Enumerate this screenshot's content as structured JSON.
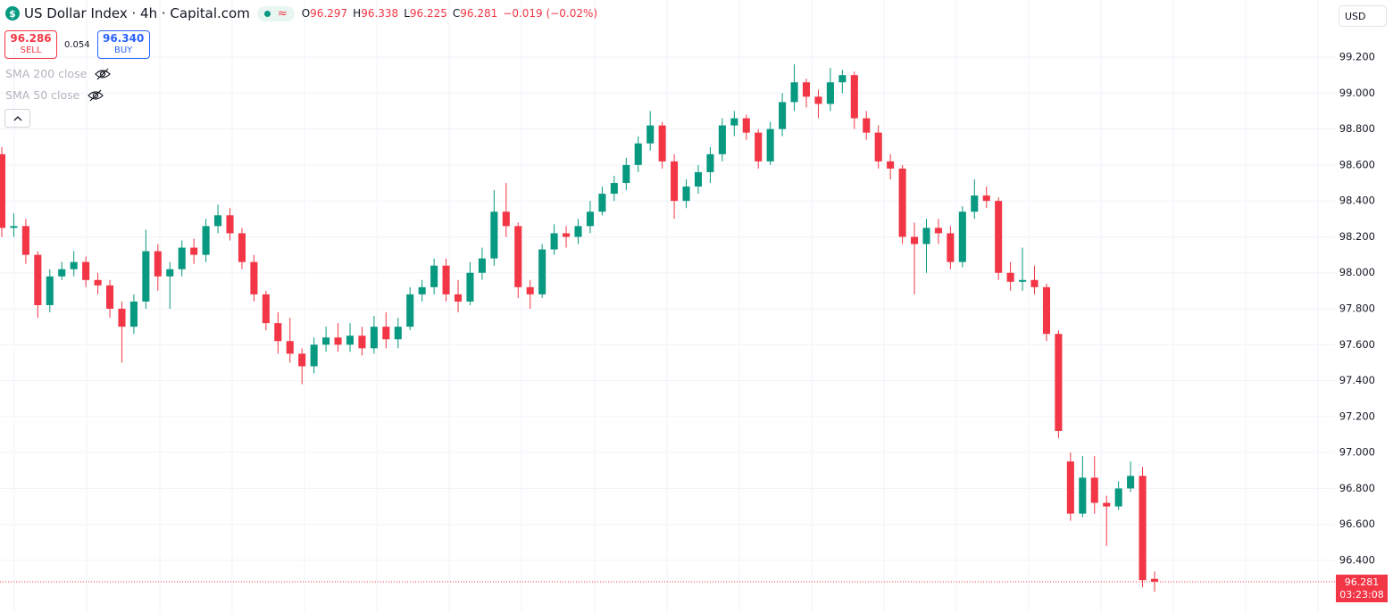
{
  "header": {
    "symbol_icon": "$",
    "title": "US Dollar Index · 4h · Capital.com",
    "o_label": "O",
    "h_label": "H",
    "l_label": "L",
    "c_label": "C",
    "change": "−0.019 (−0.02%)",
    "sell_price": "96.286",
    "sell": "SELL",
    "spread": "0.054",
    "buy_price": "96.340",
    "buy": "BUY",
    "indicators": [
      "SMA 200 close",
      "SMA 50 close"
    ],
    "currency": "USD",
    "countdown": "03:23:08"
  },
  "chart_data": {
    "type": "candlestick",
    "up_color": "#089981",
    "down_color": "#f23645",
    "grid": true,
    "ylim": [
      96.107,
      99.518
    ],
    "yticks": [
      {
        "value": 96.4,
        "label": "96.400"
      },
      {
        "value": 96.6,
        "label": "96.600"
      },
      {
        "value": 96.8,
        "label": "96.800"
      },
      {
        "value": 97,
        "label": "97.000"
      },
      {
        "value": 97.2,
        "label": "97.200"
      },
      {
        "value": 97.4,
        "label": "97.400"
      },
      {
        "value": 97.6,
        "label": "97.600"
      },
      {
        "value": 97.8,
        "label": "97.800"
      },
      {
        "value": 98,
        "label": "98.000"
      },
      {
        "value": 98.2,
        "label": "98.200"
      },
      {
        "value": 98.4,
        "label": "98.400"
      },
      {
        "value": 98.6,
        "label": "98.600"
      },
      {
        "value": 98.8,
        "label": "98.800"
      },
      {
        "value": 99,
        "label": "99.000"
      },
      {
        "value": 99.2,
        "label": "99.200"
      }
    ],
    "open": [
      98.66,
      98.25,
      98.26,
      98.1,
      97.82,
      97.98,
      98.02,
      98.06,
      97.96,
      97.93,
      97.8,
      97.7,
      97.84,
      98.12,
      97.98,
      98.02,
      98.14,
      98.1,
      98.26,
      98.32,
      98.22,
      98.06,
      97.88,
      97.72,
      97.62,
      97.55,
      97.48,
      97.6,
      97.64,
      97.6,
      97.65,
      97.58,
      97.7,
      97.63,
      97.7,
      97.88,
      97.92,
      98.04,
      97.88,
      97.84,
      98.0,
      98.08,
      98.34,
      98.26,
      97.92,
      97.88,
      98.13,
      98.22,
      98.2,
      98.26,
      98.34,
      98.44,
      98.5,
      98.6,
      98.72,
      98.82,
      98.62,
      98.4,
      98.48,
      98.56,
      98.66,
      98.82,
      98.86,
      98.78,
      98.62,
      98.8,
      98.95,
      99.06,
      98.98,
      98.94,
      99.06,
      99.1,
      98.86,
      98.78,
      98.62,
      98.58,
      98.2,
      98.16,
      98.25,
      98.22,
      98.06,
      98.34,
      98.43,
      98.4,
      98.0,
      97.95,
      97.96,
      97.92,
      97.66,
      96.95,
      96.66,
      96.86,
      96.72,
      96.7,
      96.8,
      96.87,
      96.297
    ],
    "high": [
      98.7,
      98.33,
      98.3,
      98.12,
      98.02,
      98.06,
      98.12,
      98.09,
      98.0,
      97.96,
      97.84,
      97.88,
      98.24,
      98.16,
      98.06,
      98.18,
      98.19,
      98.3,
      98.38,
      98.36,
      98.25,
      98.1,
      97.9,
      97.78,
      97.75,
      97.58,
      97.64,
      97.7,
      97.72,
      97.72,
      97.7,
      97.76,
      97.78,
      97.75,
      97.92,
      97.96,
      98.08,
      98.08,
      97.96,
      98.06,
      98.14,
      98.46,
      98.5,
      98.28,
      97.96,
      98.16,
      98.27,
      98.26,
      98.3,
      98.4,
      98.48,
      98.54,
      98.64,
      98.76,
      98.9,
      98.84,
      98.66,
      98.52,
      98.6,
      98.7,
      98.86,
      98.9,
      98.88,
      98.8,
      98.84,
      99.0,
      99.16,
      99.08,
      99.02,
      99.14,
      99.13,
      99.12,
      98.9,
      98.82,
      98.66,
      98.6,
      98.28,
      98.3,
      98.3,
      98.26,
      98.37,
      98.52,
      98.48,
      98.42,
      98.06,
      98.14,
      98.04,
      97.94,
      97.68,
      97.0,
      96.98,
      96.98,
      96.76,
      96.84,
      96.95,
      96.92,
      96.338
    ],
    "low": [
      98.2,
      98.2,
      98.05,
      97.75,
      97.78,
      97.96,
      97.98,
      97.92,
      97.88,
      97.75,
      97.5,
      97.66,
      97.8,
      97.9,
      97.8,
      97.98,
      98.05,
      98.06,
      98.22,
      98.18,
      98.02,
      97.84,
      97.68,
      97.55,
      97.5,
      97.38,
      97.44,
      97.56,
      97.56,
      97.56,
      97.54,
      97.55,
      97.58,
      97.58,
      97.68,
      97.84,
      97.88,
      97.84,
      97.78,
      97.82,
      97.96,
      98.04,
      98.2,
      97.86,
      97.8,
      97.86,
      98.1,
      98.14,
      98.16,
      98.22,
      98.32,
      98.4,
      98.46,
      98.56,
      98.68,
      98.58,
      98.3,
      98.36,
      98.44,
      98.5,
      98.62,
      98.76,
      98.74,
      98.58,
      98.6,
      98.76,
      98.9,
      98.92,
      98.86,
      98.9,
      99.0,
      98.8,
      98.74,
      98.58,
      98.52,
      98.16,
      97.88,
      98.0,
      98.16,
      98.02,
      98.03,
      98.3,
      98.36,
      97.96,
      97.9,
      97.9,
      97.88,
      97.62,
      97.08,
      96.62,
      96.64,
      96.66,
      96.48,
      96.68,
      96.78,
      96.25,
      96.225
    ],
    "close": [
      98.25,
      98.26,
      98.1,
      97.82,
      97.98,
      98.02,
      98.06,
      97.96,
      97.93,
      97.8,
      97.7,
      97.84,
      98.12,
      97.98,
      98.02,
      98.14,
      98.1,
      98.26,
      98.32,
      98.22,
      98.06,
      97.88,
      97.72,
      97.62,
      97.55,
      97.48,
      97.6,
      97.64,
      97.6,
      97.65,
      97.58,
      97.7,
      97.63,
      97.7,
      97.88,
      97.92,
      98.04,
      97.88,
      97.84,
      98.0,
      98.08,
      98.34,
      98.26,
      97.92,
      97.88,
      98.13,
      98.22,
      98.2,
      98.26,
      98.34,
      98.44,
      98.5,
      98.6,
      98.72,
      98.82,
      98.62,
      98.4,
      98.48,
      98.56,
      98.66,
      98.82,
      98.86,
      98.78,
      98.62,
      98.8,
      98.95,
      99.06,
      98.98,
      98.94,
      99.06,
      99.1,
      98.86,
      98.78,
      98.62,
      98.58,
      98.2,
      98.16,
      98.25,
      98.22,
      98.06,
      98.34,
      98.43,
      98.4,
      98.0,
      97.95,
      97.96,
      97.92,
      97.66,
      97.12,
      96.66,
      96.86,
      96.72,
      96.7,
      96.8,
      96.87,
      96.29,
      96.281
    ]
  }
}
